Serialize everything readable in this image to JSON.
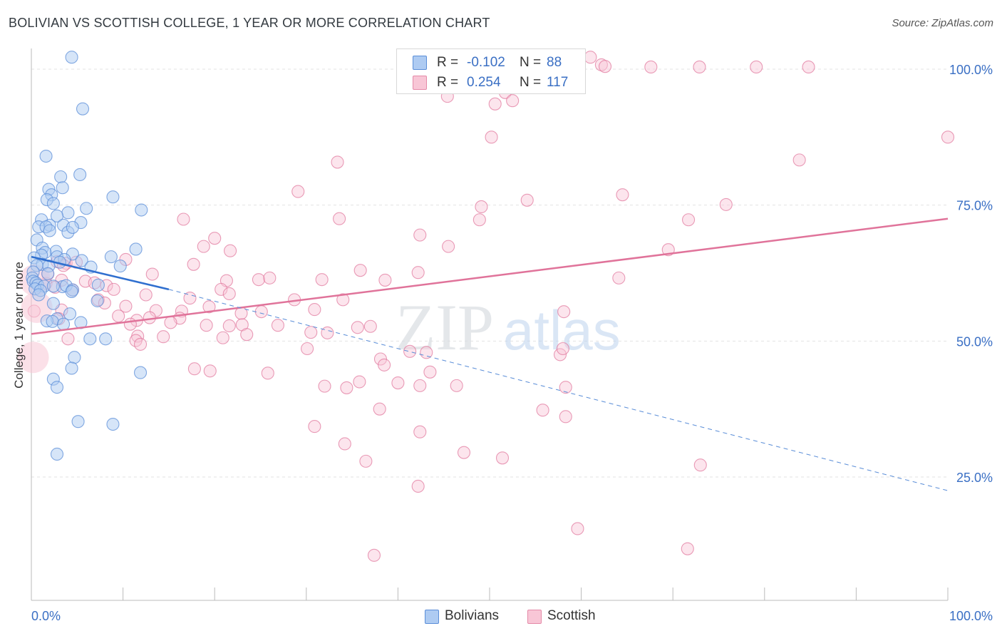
{
  "header": {
    "title": "BOLIVIAN VS SCOTTISH COLLEGE, 1 YEAR OR MORE CORRELATION CHART",
    "source": "Source: ZipAtlas.com"
  },
  "watermark": {
    "zip": "ZIP",
    "atlas": "atlas"
  },
  "legend": {
    "r_label": "R =",
    "n_label": "N =",
    "rows": [
      {
        "r": "-0.102",
        "n": "88",
        "fill": "#aecbf2",
        "stroke": "#5b8ed8"
      },
      {
        "r": "0.254",
        "n": "117",
        "fill": "#f8c6d6",
        "stroke": "#e48aa8"
      }
    ]
  },
  "bottom_legend": [
    {
      "label": "Bolivians",
      "fill": "#aecbf2",
      "stroke": "#5b8ed8"
    },
    {
      "label": "Scottish",
      "fill": "#f8c6d6",
      "stroke": "#e48aa8"
    }
  ],
  "chart_data": {
    "type": "scatter",
    "title": "BOLIVIAN VS SCOTTISH COLLEGE, 1 YEAR OR MORE CORRELATION CHART",
    "xlabel": "",
    "ylabel": "College, 1 year or more",
    "xlim": [
      0,
      100
    ],
    "ylim": [
      0,
      104
    ],
    "x_tick_labels": [
      {
        "value": 0,
        "label": "0.0%"
      },
      {
        "value": 100,
        "label": "100.0%"
      }
    ],
    "y_tick_labels": [
      {
        "value": 25,
        "label": "25.0%"
      },
      {
        "value": 50,
        "label": "50.0%"
      },
      {
        "value": 75,
        "label": "75.0%"
      },
      {
        "value": 100,
        "label": "100.0%"
      }
    ],
    "grid": true,
    "legend_position": "top-center",
    "series": [
      {
        "name": "Bolivians",
        "color": "#5b8ed8",
        "fill": "#aecbf2",
        "trend": {
          "x": [
            0,
            15
          ],
          "y": [
            65.5,
            59.5
          ],
          "extended_to": [
            100,
            22.5
          ]
        },
        "points": [
          [
            4.4,
            102.2
          ],
          [
            5.6,
            92.7
          ],
          [
            1.6,
            84
          ],
          [
            5.3,
            80.6
          ],
          [
            3.2,
            80.2
          ],
          [
            3.4,
            78.2
          ],
          [
            1.9,
            77.9
          ],
          [
            2.2,
            76.9
          ],
          [
            1.7,
            76
          ],
          [
            8.9,
            76.5
          ],
          [
            2.4,
            75.3
          ],
          [
            6,
            74.4
          ],
          [
            12,
            74.1
          ],
          [
            4,
            73.6
          ],
          [
            2.8,
            73
          ],
          [
            1.1,
            72.3
          ],
          [
            5.4,
            71.8
          ],
          [
            2,
            71.3
          ],
          [
            3.5,
            71.3
          ],
          [
            0.8,
            71
          ],
          [
            1.6,
            71
          ],
          [
            4,
            70
          ],
          [
            2,
            70.3
          ],
          [
            4.5,
            70.9
          ],
          [
            0.6,
            68.6
          ],
          [
            1.2,
            67.1
          ],
          [
            11.4,
            66.9
          ],
          [
            2.7,
            66.5
          ],
          [
            1.5,
            66.3
          ],
          [
            4.5,
            66
          ],
          [
            1.1,
            65.8
          ],
          [
            2.8,
            65.5
          ],
          [
            8.7,
            65.5
          ],
          [
            0.3,
            65.3
          ],
          [
            3.6,
            65
          ],
          [
            5.5,
            64.8
          ],
          [
            3.1,
            64.5
          ],
          [
            1.2,
            64.1
          ],
          [
            0.6,
            63.9
          ],
          [
            1.9,
            63.8
          ],
          [
            9.7,
            63.8
          ],
          [
            6.5,
            63.6
          ],
          [
            0.2,
            62.7
          ],
          [
            1.8,
            62.4
          ],
          [
            0.1,
            61.6
          ],
          [
            0.2,
            61
          ],
          [
            0.5,
            60.7
          ],
          [
            0.7,
            60.3
          ],
          [
            3.4,
            60
          ],
          [
            1.4,
            60.1
          ],
          [
            7.3,
            60.3
          ],
          [
            2.4,
            60.1
          ],
          [
            3.8,
            60.2
          ],
          [
            0.4,
            59.6
          ],
          [
            1,
            59.3
          ],
          [
            4.5,
            59.4
          ],
          [
            4.4,
            59.1
          ],
          [
            0.8,
            58.5
          ],
          [
            7.2,
            57.4
          ],
          [
            2.4,
            56.9
          ],
          [
            4.2,
            55
          ],
          [
            2.8,
            54.1
          ],
          [
            1.7,
            53.7
          ],
          [
            2.3,
            53.6
          ],
          [
            5.4,
            53.4
          ],
          [
            3.5,
            53.1
          ],
          [
            6.4,
            50.4
          ],
          [
            8.1,
            50.4
          ],
          [
            4.7,
            47
          ],
          [
            4.4,
            45
          ],
          [
            11.9,
            44.2
          ],
          [
            2.4,
            43
          ],
          [
            2.8,
            41.5
          ],
          [
            5.1,
            35.2
          ],
          [
            8.9,
            34.7
          ],
          [
            2.8,
            29.2
          ]
        ]
      },
      {
        "name": "Scottish",
        "color": "#e0739a",
        "fill": "#f8c6d6",
        "trend": {
          "x": [
            0,
            100
          ],
          "y": [
            51.3,
            72.5
          ]
        },
        "points": [
          [
            61,
            102.2
          ],
          [
            62.2,
            100.8
          ],
          [
            62.6,
            100.5
          ],
          [
            67.6,
            100.4
          ],
          [
            72.9,
            100.4
          ],
          [
            79.1,
            100.4
          ],
          [
            84.8,
            100.4
          ],
          [
            40.8,
            96.9
          ],
          [
            51.7,
            95.7
          ],
          [
            45.4,
            95
          ],
          [
            50.6,
            93.6
          ],
          [
            52.5,
            94.2
          ],
          [
            100,
            87.5
          ],
          [
            50.2,
            87.5
          ],
          [
            33.4,
            82.9
          ],
          [
            83.8,
            83.3
          ],
          [
            29.1,
            77.5
          ],
          [
            64.5,
            76.9
          ],
          [
            54.1,
            75.9
          ],
          [
            75.8,
            75.1
          ],
          [
            49.1,
            74.7
          ],
          [
            16.6,
            72.4
          ],
          [
            33.6,
            72.5
          ],
          [
            48.9,
            72.3
          ],
          [
            71.7,
            72.3
          ],
          [
            42.4,
            69.5
          ],
          [
            20,
            68.9
          ],
          [
            18.8,
            67.4
          ],
          [
            45.5,
            67.4
          ],
          [
            69.5,
            66.8
          ],
          [
            21.7,
            66.6
          ],
          [
            2.8,
            64.6
          ],
          [
            3.8,
            64.3
          ],
          [
            4.9,
            64.5
          ],
          [
            17.7,
            64.1
          ],
          [
            10.3,
            65
          ],
          [
            3.5,
            63.9
          ],
          [
            35.9,
            63
          ],
          [
            42.2,
            62.6
          ],
          [
            1.8,
            62.3
          ],
          [
            13.2,
            62.3
          ],
          [
            3.3,
            61.2
          ],
          [
            21.3,
            61.1
          ],
          [
            24.8,
            61.3
          ],
          [
            26,
            61.6
          ],
          [
            31.7,
            61.3
          ],
          [
            5.9,
            61
          ],
          [
            38.6,
            61.2
          ],
          [
            64.1,
            61.6
          ],
          [
            6.9,
            60.7
          ],
          [
            1.6,
            60.6
          ],
          [
            8.2,
            60.2
          ],
          [
            9,
            59.5
          ],
          [
            20.7,
            59.5
          ],
          [
            2.6,
            59.9
          ],
          [
            4.5,
            59.4
          ],
          [
            12.5,
            58.5
          ],
          [
            17.3,
            57.9
          ],
          [
            21.6,
            58.7
          ],
          [
            7.3,
            57.6
          ],
          [
            28.7,
            57.6
          ],
          [
            34,
            57.6
          ],
          [
            8,
            57
          ],
          [
            10.3,
            56.4
          ],
          [
            19.4,
            56.3
          ],
          [
            30.9,
            55.8
          ],
          [
            0.3,
            55.5
          ],
          [
            13.6,
            55.6
          ],
          [
            16.4,
            55.5
          ],
          [
            22.9,
            55.1
          ],
          [
            25.1,
            55.4
          ],
          [
            58.1,
            55.4
          ],
          [
            3.3,
            55.7
          ],
          [
            9.5,
            54.6
          ],
          [
            12.9,
            54.3
          ],
          [
            16.2,
            54.2
          ],
          [
            3,
            54.1
          ],
          [
            15.2,
            53.4
          ],
          [
            11.5,
            53.8
          ],
          [
            19.1,
            52.9
          ],
          [
            10.8,
            53.1
          ],
          [
            23,
            53
          ],
          [
            26.9,
            52.9
          ],
          [
            21.6,
            52.8
          ],
          [
            37,
            52.7
          ],
          [
            35.6,
            52.5
          ],
          [
            30.5,
            51.6
          ],
          [
            32.3,
            51.5
          ],
          [
            23.5,
            51.2
          ],
          [
            20.9,
            50.6
          ],
          [
            11.6,
            50.9
          ],
          [
            14.4,
            50.8
          ],
          [
            11.4,
            50.1
          ],
          [
            4,
            50.4
          ],
          [
            11.9,
            49.4
          ],
          [
            30.1,
            48.6
          ],
          [
            41.3,
            48.1
          ],
          [
            57.7,
            47.5
          ],
          [
            43.1,
            47.9
          ],
          [
            38.1,
            46.7
          ],
          [
            58,
            48.6
          ],
          [
            38.5,
            45.6
          ],
          [
            43.5,
            44.3
          ],
          [
            17.8,
            44.9
          ],
          [
            19.5,
            44.5
          ],
          [
            25.8,
            44.1
          ],
          [
            35.8,
            42.5
          ],
          [
            40,
            42.3
          ],
          [
            32,
            41.7
          ],
          [
            42.4,
            41.8
          ],
          [
            34.4,
            41.4
          ],
          [
            46.4,
            41.8
          ],
          [
            58.3,
            41.5
          ],
          [
            38,
            37.5
          ],
          [
            55.8,
            37.3
          ],
          [
            58.3,
            36.1
          ],
          [
            30.9,
            34.3
          ],
          [
            42.4,
            33.3
          ],
          [
            34.2,
            31.1
          ],
          [
            47.2,
            29.5
          ],
          [
            36.5,
            27.9
          ],
          [
            51.4,
            28.5
          ],
          [
            73,
            27.2
          ],
          [
            42.2,
            23.3
          ],
          [
            59.6,
            15.5
          ],
          [
            71.6,
            11.8
          ],
          [
            37.4,
            10.6
          ]
        ],
        "large_points": [
          [
            0.2,
            47
          ],
          [
            0.4,
            61.2
          ],
          [
            0.6,
            56.2
          ]
        ]
      }
    ]
  }
}
